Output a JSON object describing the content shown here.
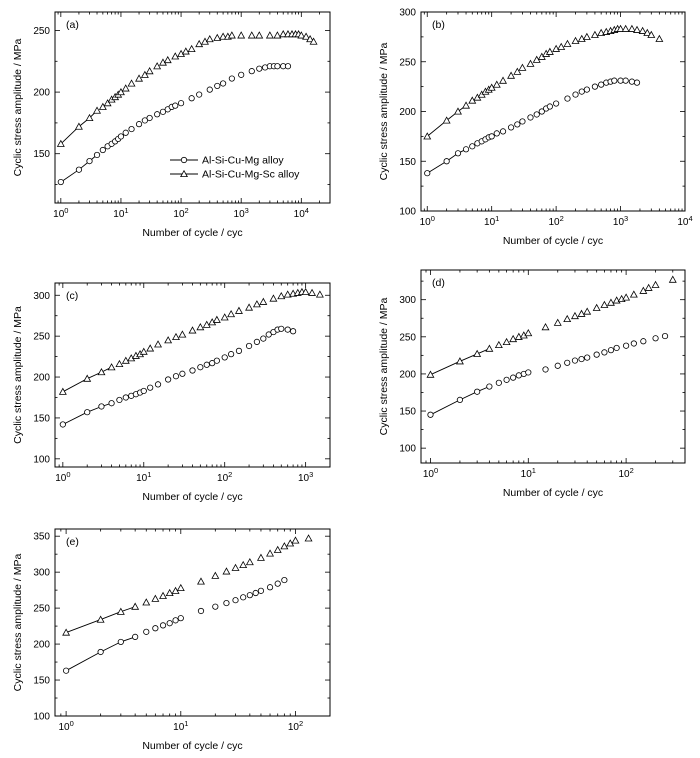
{
  "chart_data": [
    {
      "type": "scatter",
      "panel_label": "(a)",
      "xscale": "log",
      "xlim": [
        0.8,
        30000
      ],
      "xticks": [
        1,
        10,
        100,
        1000,
        10000
      ],
      "xtick_labels": [
        [
          "10",
          "0"
        ],
        [
          "10",
          "1"
        ],
        [
          "10",
          "2"
        ],
        [
          "10",
          "3"
        ],
        [
          "10",
          "4"
        ]
      ],
      "ylim": [
        110,
        265
      ],
      "yticks": [
        150,
        200,
        250
      ],
      "ytick_labels": [
        "150",
        "200",
        "250"
      ],
      "xlabel": "Number of cycle / cyc",
      "ylabel": "Cyclic stress amplitude / MPa",
      "legend": "bottom-center",
      "series": [
        {
          "name": "Al-Si-Cu-Mg alloy",
          "marker": "circle",
          "x": [
            1,
            2,
            3,
            4,
            5,
            6,
            7,
            8,
            9,
            10,
            12,
            15,
            20,
            25,
            30,
            40,
            50,
            60,
            70,
            80,
            100,
            150,
            200,
            300,
            400,
            500,
            700,
            1000,
            1500,
            2000,
            2500,
            3000,
            3500,
            4000,
            5000,
            6000
          ],
          "y": [
            127,
            137,
            144,
            149,
            153,
            156,
            158,
            160,
            162,
            164,
            167,
            170,
            174,
            177,
            179,
            182,
            184,
            186,
            188,
            189,
            191,
            195,
            198,
            202,
            205,
            207,
            211,
            214,
            217,
            219,
            220,
            221,
            221,
            221,
            221,
            221
          ]
        },
        {
          "name": "Al-Si-Cu-Mg-Sc alloy",
          "marker": "triangle",
          "x": [
            1,
            2,
            3,
            4,
            5,
            6,
            7,
            8,
            9,
            10,
            12,
            15,
            20,
            25,
            30,
            40,
            50,
            60,
            80,
            100,
            120,
            150,
            200,
            250,
            300,
            400,
            500,
            600,
            700,
            1000,
            1500,
            2000,
            3000,
            4000,
            5000,
            6000,
            7000,
            8000,
            9000,
            10000,
            12000,
            14000,
            16000
          ],
          "y": [
            158,
            172,
            179,
            185,
            188,
            191,
            194,
            196,
            198,
            200,
            203,
            207,
            211,
            214,
            217,
            221,
            224,
            226,
            229,
            231,
            233,
            235,
            239,
            241,
            243,
            244,
            245,
            245,
            246,
            246,
            246,
            246,
            246,
            246,
            247,
            247,
            247,
            247,
            247,
            246,
            245,
            243,
            241
          ]
        }
      ]
    },
    {
      "type": "scatter",
      "panel_label": "(b)",
      "xscale": "log",
      "xlim": [
        0.8,
        10000
      ],
      "xticks": [
        1,
        10,
        100,
        1000,
        10000
      ],
      "xtick_labels": [
        [
          "10",
          "0"
        ],
        [
          "10",
          "1"
        ],
        [
          "10",
          "2"
        ],
        [
          "10",
          "3"
        ],
        [
          "10",
          "4"
        ]
      ],
      "ylim": [
        100,
        300
      ],
      "yticks": [
        100,
        150,
        200,
        250,
        300
      ],
      "ytick_labels": [
        "100",
        "150",
        "200",
        "250",
        "300"
      ],
      "xlabel": "Number of cycle / cyc",
      "ylabel": "Cyclic stress amplitude / MPa",
      "series": [
        {
          "name": "Al-Si-Cu-Mg alloy",
          "marker": "circle",
          "x": [
            1,
            2,
            3,
            4,
            5,
            6,
            7,
            8,
            9,
            10,
            12,
            15,
            20,
            25,
            30,
            40,
            50,
            60,
            70,
            80,
            100,
            150,
            200,
            250,
            300,
            400,
            500,
            600,
            700,
            800,
            1000,
            1200,
            1500,
            1800
          ],
          "y": [
            138,
            150,
            158,
            162,
            165,
            168,
            170,
            172,
            174,
            175,
            178,
            180,
            184,
            187,
            190,
            194,
            197,
            200,
            203,
            205,
            208,
            213,
            217,
            220,
            222,
            225,
            227,
            229,
            230,
            231,
            231,
            231,
            230,
            229
          ]
        },
        {
          "name": "Al-Si-Cu-Mg-Sc alloy",
          "marker": "triangle",
          "x": [
            1,
            2,
            3,
            4,
            5,
            6,
            7,
            8,
            9,
            10,
            12,
            15,
            20,
            25,
            30,
            40,
            50,
            60,
            70,
            80,
            100,
            120,
            150,
            200,
            250,
            300,
            400,
            500,
            600,
            700,
            800,
            900,
            1000,
            1200,
            1500,
            1800,
            2200,
            2600,
            3000,
            4000
          ],
          "y": [
            175,
            191,
            200,
            206,
            211,
            214,
            217,
            220,
            222,
            224,
            227,
            231,
            236,
            240,
            244,
            248,
            252,
            255,
            258,
            260,
            263,
            265,
            268,
            271,
            273,
            275,
            277,
            279,
            280,
            281,
            282,
            283,
            283,
            283,
            283,
            282,
            281,
            279,
            277,
            273
          ]
        }
      ]
    },
    {
      "type": "scatter",
      "panel_label": "(c)",
      "xscale": "log",
      "xlim": [
        0.8,
        2000
      ],
      "xticks": [
        1,
        10,
        100,
        1000
      ],
      "xtick_labels": [
        [
          "10",
          "0"
        ],
        [
          "10",
          "1"
        ],
        [
          "10",
          "2"
        ],
        [
          "10",
          "3"
        ]
      ],
      "ylim": [
        90,
        315
      ],
      "yticks": [
        100,
        150,
        200,
        250,
        300
      ],
      "ytick_labels": [
        "100",
        "150",
        "200",
        "250",
        "300"
      ],
      "xlabel": "Number of cycle / cyc",
      "ylabel": "Cyclic stress amplitude / MPa",
      "series": [
        {
          "name": "Al-Si-Cu-Mg alloy",
          "marker": "circle",
          "x": [
            1,
            2,
            3,
            4,
            5,
            6,
            7,
            8,
            9,
            10,
            12,
            15,
            20,
            25,
            30,
            40,
            50,
            60,
            70,
            80,
            100,
            120,
            150,
            200,
            250,
            300,
            350,
            400,
            450,
            500,
            600,
            700
          ],
          "y": [
            142,
            157,
            164,
            168,
            172,
            175,
            177,
            179,
            181,
            183,
            187,
            191,
            197,
            201,
            204,
            208,
            212,
            215,
            217,
            220,
            224,
            228,
            232,
            238,
            243,
            247,
            252,
            255,
            258,
            259,
            258,
            256
          ]
        },
        {
          "name": "Al-Si-Cu-Mg-Sc alloy",
          "marker": "triangle",
          "x": [
            1,
            2,
            3,
            4,
            5,
            6,
            7,
            8,
            9,
            10,
            12,
            15,
            20,
            25,
            30,
            40,
            50,
            60,
            70,
            80,
            100,
            120,
            150,
            200,
            250,
            300,
            400,
            500,
            600,
            700,
            800,
            900,
            1000,
            1200,
            1500
          ],
          "y": [
            182,
            198,
            206,
            212,
            216,
            220,
            223,
            226,
            228,
            231,
            235,
            240,
            245,
            249,
            252,
            257,
            261,
            264,
            267,
            270,
            273,
            277,
            281,
            285,
            289,
            292,
            296,
            299,
            301,
            302,
            303,
            304,
            304,
            303,
            301
          ]
        }
      ]
    },
    {
      "type": "scatter",
      "panel_label": "(d)",
      "xscale": "log",
      "xlim": [
        0.8,
        400
      ],
      "xticks": [
        1,
        10,
        100
      ],
      "xtick_labels": [
        [
          "10",
          "0"
        ],
        [
          "10",
          "1"
        ],
        [
          "10",
          "2"
        ]
      ],
      "ylim": [
        80,
        340
      ],
      "yticks": [
        100,
        150,
        200,
        250,
        300
      ],
      "ytick_labels": [
        "100",
        "150",
        "200",
        "250",
        "300"
      ],
      "xlabel": "Number of cycle / cyc",
      "ylabel": "Cyclic stress amplitude / MPa",
      "series": [
        {
          "name": "Al-Si-Cu-Mg alloy",
          "marker": "circle",
          "x": [
            1,
            2,
            3,
            4,
            5,
            6,
            7,
            8,
            9,
            10,
            15,
            20,
            25,
            30,
            35,
            40,
            50,
            60,
            70,
            80,
            100,
            120,
            150,
            200,
            250
          ],
          "y": [
            145,
            165,
            176,
            183,
            188,
            192,
            195,
            198,
            200,
            202,
            206,
            211,
            215,
            218,
            220,
            222,
            226,
            229,
            232,
            235,
            238,
            241,
            244,
            248,
            251
          ]
        },
        {
          "name": "Al-Si-Cu-Mg-Sc alloy",
          "marker": "triangle",
          "x": [
            1,
            2,
            3,
            4,
            5,
            6,
            7,
            8,
            9,
            10,
            15,
            20,
            25,
            30,
            35,
            40,
            50,
            60,
            70,
            80,
            90,
            100,
            120,
            150,
            170,
            200,
            300
          ],
          "y": [
            199,
            217,
            227,
            234,
            239,
            243,
            247,
            250,
            252,
            255,
            263,
            269,
            274,
            278,
            281,
            284,
            289,
            293,
            296,
            299,
            301,
            303,
            307,
            312,
            316,
            320,
            327
          ]
        }
      ]
    },
    {
      "type": "scatter",
      "panel_label": "(e)",
      "xscale": "log",
      "xlim": [
        0.8,
        200
      ],
      "xticks": [
        1,
        10,
        100
      ],
      "xtick_labels": [
        [
          "10",
          "0"
        ],
        [
          "10",
          "1"
        ],
        [
          "10",
          "2"
        ]
      ],
      "ylim": [
        100,
        360
      ],
      "yticks": [
        100,
        150,
        200,
        250,
        300,
        350
      ],
      "ytick_labels": [
        "100",
        "150",
        "200",
        "250",
        "300",
        "350"
      ],
      "xlabel": "Number of cycle / cyc",
      "ylabel": "Cyclic stress amplitude / MPa",
      "series": [
        {
          "name": "Al-Si-Cu-Mg alloy",
          "marker": "circle",
          "x": [
            1,
            2,
            3,
            4,
            5,
            6,
            7,
            8,
            9,
            10,
            15,
            20,
            25,
            30,
            35,
            40,
            45,
            50,
            60,
            70,
            80
          ],
          "y": [
            163,
            189,
            203,
            210,
            217,
            222,
            226,
            229,
            233,
            236,
            246,
            252,
            257,
            261,
            265,
            268,
            271,
            274,
            279,
            284,
            289
          ]
        },
        {
          "name": "Al-Si-Cu-Mg-Sc alloy",
          "marker": "triangle",
          "x": [
            1,
            2,
            3,
            4,
            5,
            6,
            7,
            8,
            9,
            10,
            15,
            20,
            25,
            30,
            35,
            40,
            50,
            60,
            70,
            80,
            90,
            100,
            130
          ],
          "y": [
            216,
            234,
            245,
            252,
            258,
            263,
            267,
            271,
            274,
            278,
            287,
            295,
            301,
            306,
            310,
            314,
            320,
            326,
            331,
            336,
            340,
            344,
            347
          ]
        }
      ]
    }
  ]
}
